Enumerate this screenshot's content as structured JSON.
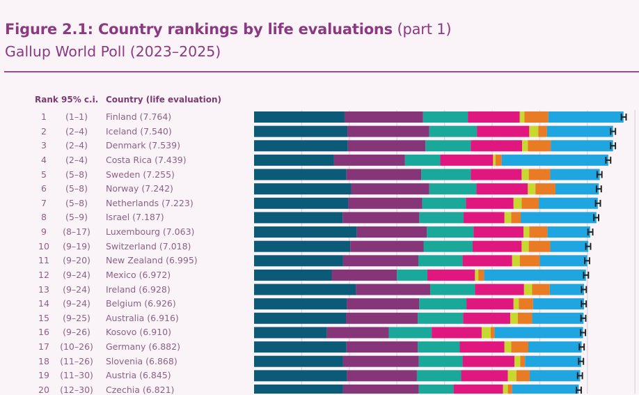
{
  "title": {
    "main": "Figure 2.1: Country rankings by life evaluations",
    "part": "(part 1)",
    "subtitle": "Gallup World Poll (2023–2025)"
  },
  "columns": {
    "rank": "Rank",
    "ci": "95% c.i.",
    "country": "Country (life evaluation)"
  },
  "colors": {
    "background": "#faf4f8",
    "title": "#8a3a80",
    "segments": [
      "#0b5a78",
      "#863579",
      "#1aa89a",
      "#e0177f",
      "#c9d82f",
      "#e97b25",
      "#1fa6e0"
    ],
    "whisker": "#222222",
    "grid": "#e2d8df"
  },
  "chart_data": {
    "type": "bar",
    "orientation": "horizontal",
    "stacked": true,
    "grid": true,
    "xlim": [
      0,
      8
    ],
    "error_margin": 0.05,
    "rows": [
      {
        "rank": "1",
        "ci": "(1–1)",
        "label": "Finland (7.764)",
        "total": 7.764,
        "values": [
          1.9,
          1.65,
          0.94,
          1.09,
          0.1,
          0.5,
          1.58
        ]
      },
      {
        "rank": "2",
        "ci": "(2–4)",
        "label": "Iceland (7.540)",
        "total": 7.54,
        "values": [
          1.96,
          1.72,
          1.0,
          1.1,
          0.19,
          0.18,
          1.39
        ]
      },
      {
        "rank": "3",
        "ci": "(2–4)",
        "label": "Denmark (7.539)",
        "total": 7.539,
        "values": [
          1.97,
          1.63,
          0.95,
          1.08,
          0.12,
          0.48,
          1.31
        ]
      },
      {
        "rank": "4",
        "ci": "(2–4)",
        "label": "Costa Rica (7.439)",
        "total": 7.439,
        "values": [
          1.68,
          1.49,
          0.74,
          1.11,
          0.05,
          0.13,
          2.24
        ]
      },
      {
        "rank": "5",
        "ci": "(5–8)",
        "label": "Sweden (7.255)",
        "total": 7.255,
        "values": [
          1.94,
          1.57,
          1.04,
          1.07,
          0.15,
          0.45,
          1.04
        ]
      },
      {
        "rank": "6",
        "ci": "(5–8)",
        "label": "Norway (7.242)",
        "total": 7.242,
        "values": [
          2.04,
          1.64,
          0.99,
          1.08,
          0.16,
          0.42,
          0.91
        ]
      },
      {
        "rank": "7",
        "ci": "(5–8)",
        "label": "Netherlands (7.223)",
        "total": 7.223,
        "values": [
          1.98,
          1.55,
          0.92,
          1.0,
          0.17,
          0.36,
          1.24
        ]
      },
      {
        "rank": "8",
        "ci": "(5–9)",
        "label": "Israel (7.187)",
        "total": 7.187,
        "values": [
          1.86,
          1.61,
          0.93,
          0.86,
          0.14,
          0.2,
          1.59
        ]
      },
      {
        "rank": "9",
        "ci": "(8–17)",
        "label": "Luxembourg (7.063)",
        "total": 7.063,
        "values": [
          2.16,
          1.47,
          0.98,
          1.05,
          0.12,
          0.38,
          0.9
        ]
      },
      {
        "rank": "10",
        "ci": "(9–19)",
        "label": "Switzerland (7.018)",
        "total": 7.018,
        "values": [
          2.02,
          1.54,
          1.03,
          1.03,
          0.15,
          0.45,
          0.8
        ]
      },
      {
        "rank": "11",
        "ci": "(9–20)",
        "label": "New Zealand (6.995)",
        "total": 6.995,
        "values": [
          1.87,
          1.58,
          0.93,
          1.04,
          0.16,
          0.42,
          1.0
        ]
      },
      {
        "rank": "12",
        "ci": "(9–24)",
        "label": "Mexico (6.972)",
        "total": 6.972,
        "values": [
          1.63,
          1.37,
          0.64,
          1.0,
          0.07,
          0.12,
          2.14
        ]
      },
      {
        "rank": "13",
        "ci": "(9–24)",
        "label": "Ireland (6.928)",
        "total": 6.928,
        "values": [
          2.14,
          1.56,
          0.94,
          1.03,
          0.17,
          0.37,
          0.72
        ]
      },
      {
        "rank": "14",
        "ci": "(9–24)",
        "label": "Belgium (6.926)",
        "total": 6.926,
        "values": [
          1.95,
          1.52,
          0.99,
          0.99,
          0.11,
          0.3,
          1.07
        ]
      },
      {
        "rank": "15",
        "ci": "(9–25)",
        "label": "Australia (6.916)",
        "total": 6.916,
        "values": [
          1.93,
          1.51,
          0.95,
          0.99,
          0.16,
          0.3,
          1.08
        ]
      },
      {
        "rank": "16",
        "ci": "(9–26)",
        "label": "Kosovo (6.910)",
        "total": 6.91,
        "values": [
          1.53,
          1.3,
          0.9,
          1.05,
          0.19,
          0.08,
          1.86
        ]
      },
      {
        "rank": "17",
        "ci": "(10–26)",
        "label": "Germany (6.882)",
        "total": 6.882,
        "values": [
          1.94,
          1.5,
          0.88,
          0.94,
          0.14,
          0.36,
          1.12
        ]
      },
      {
        "rank": "18",
        "ci": "(11–26)",
        "label": "Slovenia (6.868)",
        "total": 6.868,
        "values": [
          1.87,
          1.59,
          0.92,
          1.09,
          0.12,
          0.1,
          1.18
        ]
      },
      {
        "rank": "19",
        "ci": "(11–30)",
        "label": "Austria (6.845)",
        "total": 6.845,
        "values": [
          1.95,
          1.47,
          0.93,
          0.98,
          0.18,
          0.28,
          1.06
        ]
      },
      {
        "rank": "20",
        "ci": "(12–30)",
        "label": "Czechia (6.821)",
        "total": 6.821,
        "values": [
          1.87,
          1.59,
          0.73,
          1.04,
          0.1,
          0.09,
          1.4
        ]
      }
    ]
  }
}
